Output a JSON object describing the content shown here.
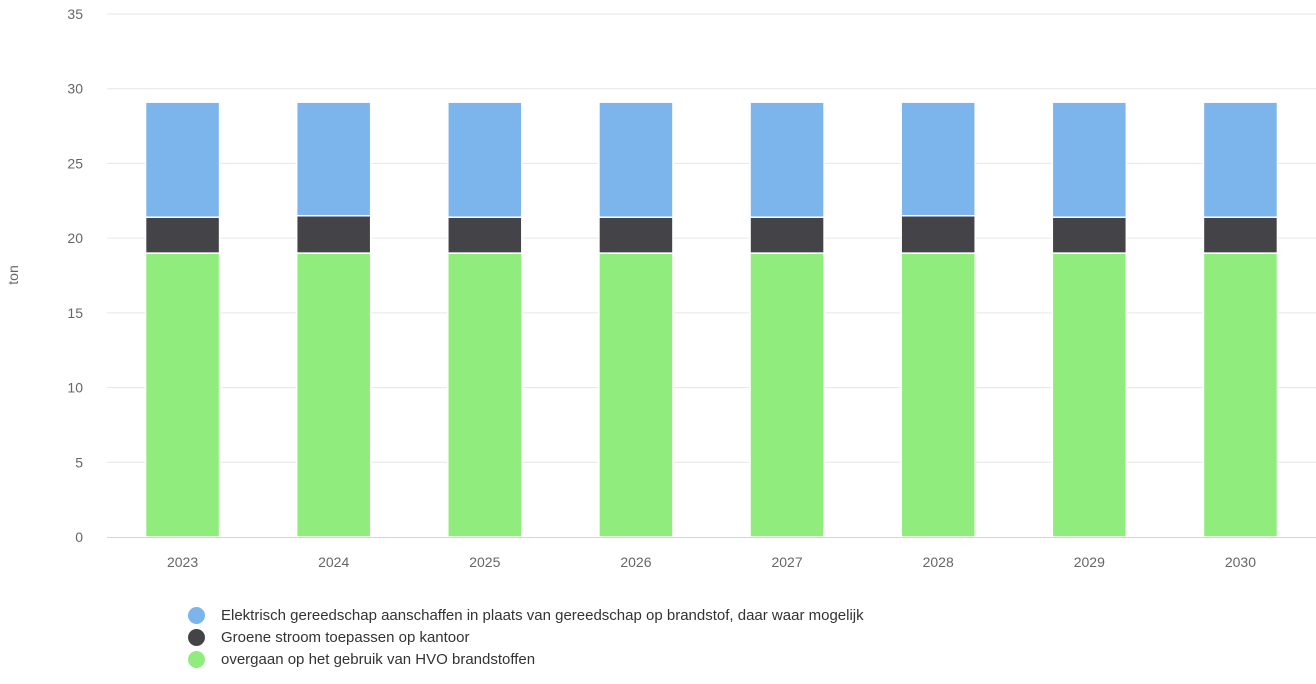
{
  "chart_data": {
    "type": "bar",
    "stacked": true,
    "categories": [
      "2023",
      "2024",
      "2025",
      "2026",
      "2027",
      "2028",
      "2029",
      "2030"
    ],
    "ylabel": "ton",
    "ylim": [
      0,
      35
    ],
    "yticks": [
      0,
      5,
      10,
      15,
      20,
      25,
      30,
      35
    ],
    "grid": true,
    "legend_position": "bottom-left",
    "series": [
      {
        "name": "overgaan op het gebruik van HVO brandstoffen",
        "color": "#90ed7d",
        "values": [
          19,
          19,
          19,
          19,
          19,
          19,
          19,
          19
        ]
      },
      {
        "name": "Groene stroom toepassen op kantoor",
        "color": "#434348",
        "values": [
          2.4,
          2.5,
          2.4,
          2.4,
          2.4,
          2.5,
          2.4,
          2.4
        ]
      },
      {
        "name": "Elektrisch gereedschap aanschaffen in plaats van gereedschap op brandstof, daar waar mogelijk",
        "color": "#7cb5ec",
        "values": [
          7.7,
          7.6,
          7.7,
          7.7,
          7.7,
          7.6,
          7.7,
          7.7
        ]
      }
    ],
    "legend_order": [
      2,
      1,
      0
    ]
  }
}
